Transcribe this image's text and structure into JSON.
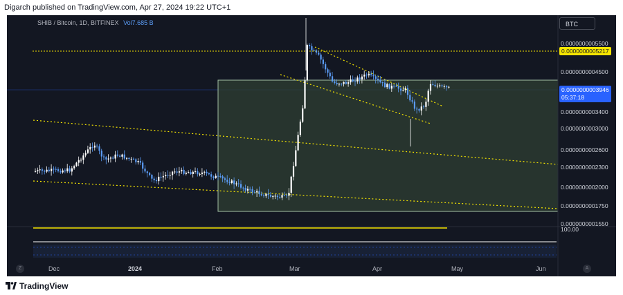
{
  "header": {
    "publish_line": "Digarch published on TradingView.com, Apr 27, 2024 19:22 UTC+1"
  },
  "legend": {
    "symbol": "SHIB / Bitcoin, 1D, BITFINEX",
    "vol_label": "Vol",
    "vol_value": "7.685 B"
  },
  "symbol_button": {
    "label": "BTC"
  },
  "price_axis": {
    "labels": [
      "0.0000000005500",
      "0.0000000004500",
      "0.0000000003400",
      "0.0000000003000",
      "0.0000000002600",
      "0.0000000002300",
      "0.0000000002000",
      "0.0000000001750",
      "0.0000000001550"
    ],
    "yellow_tag": "0.0000000005217",
    "current_price": "0.0000000003946",
    "countdown": "05:37:18",
    "volume_scale": "100.00"
  },
  "time_axis": {
    "labels": [
      "Dec",
      "2024",
      "Feb",
      "Mar",
      "Apr",
      "May",
      "Jun"
    ]
  },
  "controls": {
    "left_button": "Z",
    "right_button": "A"
  },
  "footer": {
    "brand": "TradingView"
  },
  "colors": {
    "background": "#131722",
    "up": "#ffffff",
    "down": "#5b9cf6",
    "accent_yellow": "#f7e600",
    "box_fill": "#2f3f33",
    "box_border": "#a5c2a5"
  }
}
